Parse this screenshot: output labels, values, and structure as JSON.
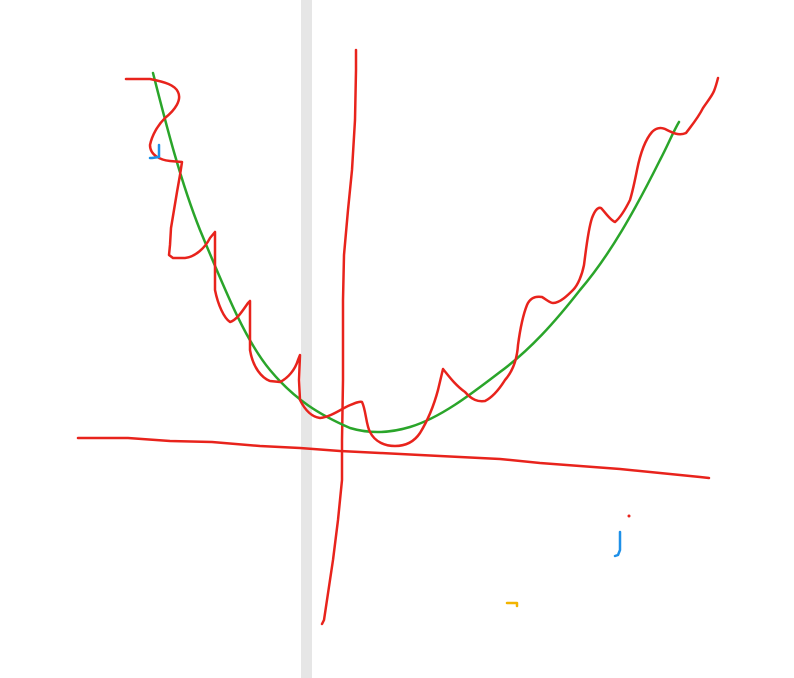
{
  "colors": {
    "background": "#ffffff",
    "divider": "#e6e6e6",
    "red_ink": "#e8231c",
    "green_ink": "#2aa52a",
    "blue_ink": "#1e90e8",
    "yellow_ink": "#f2b400"
  },
  "strokes": [
    {
      "name": "x-axis-stroke",
      "color": "red_ink"
    },
    {
      "name": "y-axis-stroke",
      "color": "red_ink"
    },
    {
      "name": "smooth-parabola-stroke",
      "color": "green_ink"
    },
    {
      "name": "jagged-approximation-stroke",
      "color": "red_ink"
    },
    {
      "name": "blue-mark-left",
      "color": "blue_ink"
    },
    {
      "name": "blue-mark-right",
      "color": "blue_ink"
    },
    {
      "name": "red-dot",
      "color": "red_ink"
    },
    {
      "name": "yellow-mark",
      "color": "yellow_ink"
    }
  ]
}
